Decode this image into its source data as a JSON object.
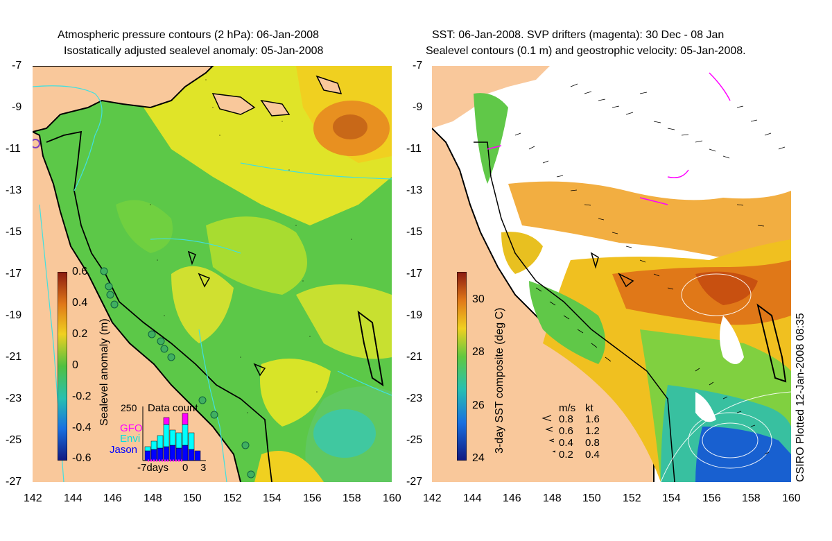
{
  "left_panel": {
    "title_line1": "Atmospheric pressure contours (2 hPa): 06-Jan-2008",
    "title_line2": "Isostatically adjusted sealevel anomaly: 05-Jan-2008",
    "colorbar_label": "Sealevel anomaly (m)",
    "colorbar_ticks": [
      "0.6",
      "0.4",
      "0.2",
      "0",
      "-0.2",
      "-0.4",
      "-0.6"
    ],
    "inset": {
      "title": "Data count",
      "ymax_label": "250",
      "series": [
        {
          "name": "GFO",
          "color": "#ff00ff"
        },
        {
          "name": "Envi",
          "color": "#00ffff"
        },
        {
          "name": "Jason",
          "color": "#0000ff"
        }
      ],
      "x_labels": [
        "-7days",
        "0",
        "3"
      ]
    }
  },
  "right_panel": {
    "title_line1": "SST: 06-Jan-2008. SVP drifters (magenta): 30 Dec - 08 Jan",
    "title_line2": "Sealevel contours (0.1 m) and geostrophic velocity: 05-Jan-2008.",
    "colorbar_label": "3-day SST composite (deg C)",
    "colorbar_ticks": [
      "30",
      "28",
      "26",
      "24"
    ],
    "velocity_key": {
      "header_ms": "m/s",
      "header_kt": "kt",
      "rows": [
        {
          "ms": "0.8",
          "kt": "1.6"
        },
        {
          "ms": "0.6",
          "kt": "1.2"
        },
        {
          "ms": "0.4",
          "kt": "0.8"
        },
        {
          "ms": "0.2",
          "kt": "0.4"
        }
      ]
    }
  },
  "lat_ticks": [
    "-7",
    "-9",
    "-11",
    "-13",
    "-15",
    "-17",
    "-19",
    "-21",
    "-23",
    "-25",
    "-27"
  ],
  "lon_ticks": [
    "142",
    "144",
    "146",
    "148",
    "150",
    "152",
    "154",
    "156",
    "158",
    "160"
  ],
  "credit": "CSIRO Plotted 12-Jan-2008 08:35",
  "colors": {
    "land": "#f9c89b",
    "sea_green": "#5cc848",
    "sea_yellow": "#e8e824",
    "sea_orange": "#e07818",
    "contour_cyan": "#40e0e0"
  }
}
